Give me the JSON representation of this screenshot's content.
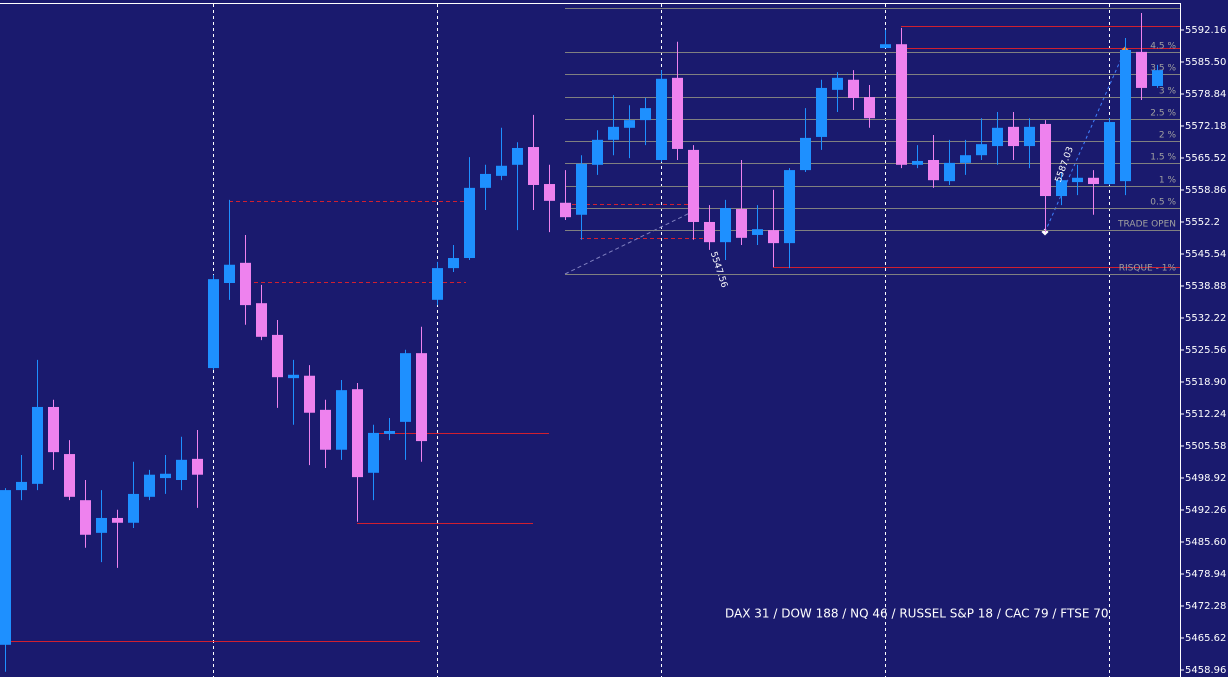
{
  "chart_data": {
    "type": "candlestick",
    "footer": "DAX 31 / DOW 188 / NQ 46 / RUSSEL S&P 18 / CAC 79 / FTSE 70",
    "levels": [
      "4.5 %",
      "3.5 %",
      "3 %",
      "2.5 %",
      "2 %",
      "1.5 %",
      "1 %",
      "0.5 %",
      "TRADE OPEN",
      "RISQUE - 1%"
    ],
    "price_labels": [
      "5547.56",
      "5587.03"
    ],
    "up_color": "#1e90ff",
    "down_color": "#ee82ee",
    "ylim": [
      5457.5,
      5598.4
    ],
    "yticks": [
      5592.16,
      {
        "value": 5585.5,
        "label": "5585.50"
      },
      5578.84,
      5572.18,
      5565.52,
      5558.86,
      5552.2,
      5545.54,
      5538.88,
      5532.22,
      5525.56,
      {
        "value": 5518.9,
        "label": "5518.90"
      },
      5512.24,
      5505.58,
      5498.92,
      5492.26,
      {
        "value": 5485.6,
        "label": "5485.60"
      },
      5478.94,
      5472.28,
      5465.62,
      5458.96
    ],
    "open": [
      5464.2,
      5496.4,
      5497.7,
      5513.7,
      5503.9,
      5494.3,
      5487.5,
      5490.6,
      5489.6,
      5495.0,
      5498.9,
      5498.5,
      5502.9,
      5521.8,
      5539.5,
      5543.7,
      5535.3,
      5528.7,
      5519.7,
      5520.2,
      5513.1,
      5504.8,
      5517.4,
      5500.0,
      5508.1,
      5510.6,
      5524.9,
      5536.0,
      5542.6,
      5544.7,
      5559.3,
      5561.8,
      5564.1,
      5567.8,
      5560.1,
      5556.2,
      5553.7,
      5564.1,
      5569.3,
      5571.8,
      5573.4,
      5565.1,
      5582.2,
      5567.2,
      5552.2,
      5548.0,
      5554.9,
      5549.5,
      5550.5,
      5547.8,
      5563.0,
      5569.9,
      5579.7,
      5581.8,
      5578.2,
      5588.4,
      5589.2,
      5564.1,
      5565.1,
      5560.7,
      5564.5,
      5566.1,
      5568.0,
      5572.0,
      5568.0,
      5572.6,
      5557.6,
      5560.5,
      5561.4,
      5560.1,
      5560.7,
      5587.6,
      5580.5
    ],
    "high": [
      5496.8,
      5503.7,
      5523.5,
      5515.2,
      5506.8,
      5498.5,
      5496.4,
      5492.3,
      5502.3,
      5500.6,
      5503.7,
      5507.5,
      5508.9,
      5541.2,
      5556.8,
      5549.5,
      5539.1,
      5531.8,
      5523.5,
      5522.4,
      5515.2,
      5519.3,
      5518.7,
      5510.0,
      5511.4,
      5525.6,
      5530.4,
      5543.9,
      5547.4,
      5565.7,
      5564.1,
      5571.8,
      5568.8,
      5574.5,
      5564.1,
      5563.0,
      5566.1,
      5571.3,
      5578.6,
      5576.5,
      5578.0,
      5583.8,
      5589.7,
      5568.2,
      5555.7,
      5556.8,
      5565.1,
      5555.7,
      5558.9,
      5563.4,
      5575.9,
      5581.8,
      5583.4,
      5583.8,
      5580.7,
      5592.2,
      5592.6,
      5568.2,
      5570.3,
      5569.3,
      5569.3,
      5573.8,
      5575.1,
      5575.1,
      5573.8,
      5573.4,
      5562.4,
      5564.1,
      5563.0,
      5573.8,
      5590.5,
      5595.7,
      5584.9
    ],
    "low": [
      5458.6,
      5494.3,
      5496.4,
      5500.6,
      5494.3,
      5484.4,
      5481.4,
      5480.2,
      5488.5,
      5494.3,
      5495.6,
      5496.4,
      5492.7,
      5521.4,
      5536.0,
      5530.8,
      5527.6,
      5513.5,
      5510.0,
      5501.6,
      5501.0,
      5502.7,
      5489.8,
      5494.3,
      5506.8,
      5502.7,
      5502.3,
      5534.9,
      5541.8,
      5544.3,
      5554.7,
      5560.9,
      5550.5,
      5554.7,
      5550.1,
      5552.6,
      5548.5,
      5562.0,
      5566.1,
      5565.5,
      5568.2,
      5564.7,
      5565.1,
      5548.5,
      5546.4,
      5544.3,
      5547.4,
      5547.4,
      5542.8,
      5542.6,
      5562.6,
      5567.2,
      5575.1,
      5575.5,
      5571.8,
      5588.4,
      5563.4,
      5563.4,
      5559.3,
      5559.9,
      5562.0,
      5565.1,
      5564.1,
      5565.1,
      5563.4,
      5550.1,
      5555.7,
      5557.8,
      5553.7,
      5559.9,
      5557.8,
      5577.6,
      5580.1
    ],
    "close": [
      5496.4,
      5498.1,
      5513.7,
      5504.3,
      5495.0,
      5487.1,
      5490.6,
      5489.6,
      5495.6,
      5499.6,
      5499.8,
      5502.7,
      5499.6,
      5540.3,
      5543.3,
      5534.9,
      5528.3,
      5519.9,
      5520.4,
      5512.5,
      5504.8,
      5517.2,
      5499.1,
      5508.3,
      5508.7,
      5524.9,
      5506.6,
      5542.6,
      5544.7,
      5559.3,
      5562.2,
      5563.9,
      5567.6,
      5559.9,
      5556.6,
      5553.2,
      5564.3,
      5569.3,
      5572.0,
      5573.4,
      5575.9,
      5582.0,
      5567.4,
      5552.2,
      5548.0,
      5555.1,
      5548.9,
      5550.7,
      5547.8,
      5563.0,
      5569.7,
      5580.1,
      5582.2,
      5578.0,
      5573.8,
      5589.2,
      5564.1,
      5564.9,
      5560.9,
      5564.5,
      5566.1,
      5568.4,
      5571.8,
      5568.0,
      5572.0,
      5557.6,
      5560.9,
      5561.4,
      5560.1,
      5573.0,
      5588.0,
      5580.1,
      5583.8
    ]
  }
}
